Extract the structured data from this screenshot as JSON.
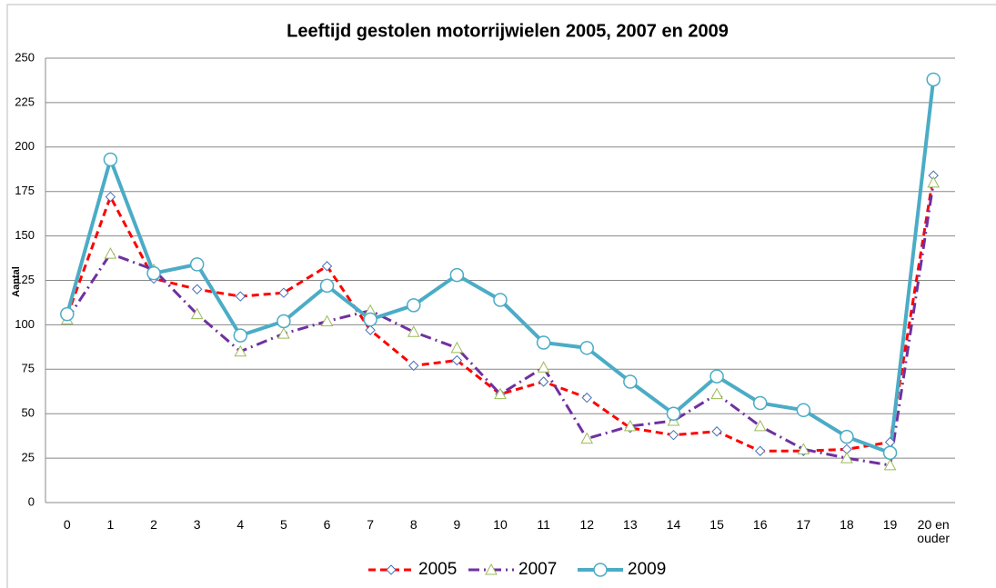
{
  "chart_data": {
    "type": "line",
    "title": "Leeftijd gestolen motorrijwielen 2005, 2007 en 2009",
    "y_label": "Aantal",
    "categories": [
      "0",
      "1",
      "2",
      "3",
      "4",
      "5",
      "6",
      "7",
      "8",
      "9",
      "10",
      "11",
      "12",
      "13",
      "14",
      "15",
      "16",
      "17",
      "18",
      "19",
      "20 en ouder"
    ],
    "series": [
      {
        "name": "2005",
        "color": "#ff0000",
        "dash": "8,5",
        "width": 3,
        "marker": "diamond",
        "marker_color": "#4a6fb5",
        "values": [
          105,
          172,
          126,
          120,
          116,
          118,
          133,
          97,
          77,
          80,
          61,
          68,
          59,
          42,
          38,
          40,
          29,
          29,
          30,
          34,
          184
        ]
      },
      {
        "name": "2007",
        "color": "#7030a0",
        "dash": "12,5,2,5",
        "width": 3,
        "marker": "triangle",
        "marker_color": "#9bbb59",
        "values": [
          103,
          140,
          131,
          106,
          85,
          95,
          102,
          108,
          96,
          87,
          61,
          76,
          36,
          43,
          46,
          61,
          43,
          30,
          25,
          21,
          180
        ]
      },
      {
        "name": "2009",
        "color": "#4bacc6",
        "dash": "none",
        "width": 4,
        "marker": "circle",
        "marker_color": "#4bacc6",
        "values": [
          106,
          193,
          129,
          134,
          94,
          102,
          122,
          103,
          111,
          128,
          114,
          90,
          87,
          68,
          50,
          71,
          56,
          52,
          37,
          28,
          238
        ]
      }
    ],
    "ylim": [
      0,
      250
    ],
    "yticks": [
      0,
      25,
      50,
      75,
      100,
      125,
      150,
      175,
      200,
      225,
      250
    ],
    "grid": true,
    "legend": "bottom"
  }
}
